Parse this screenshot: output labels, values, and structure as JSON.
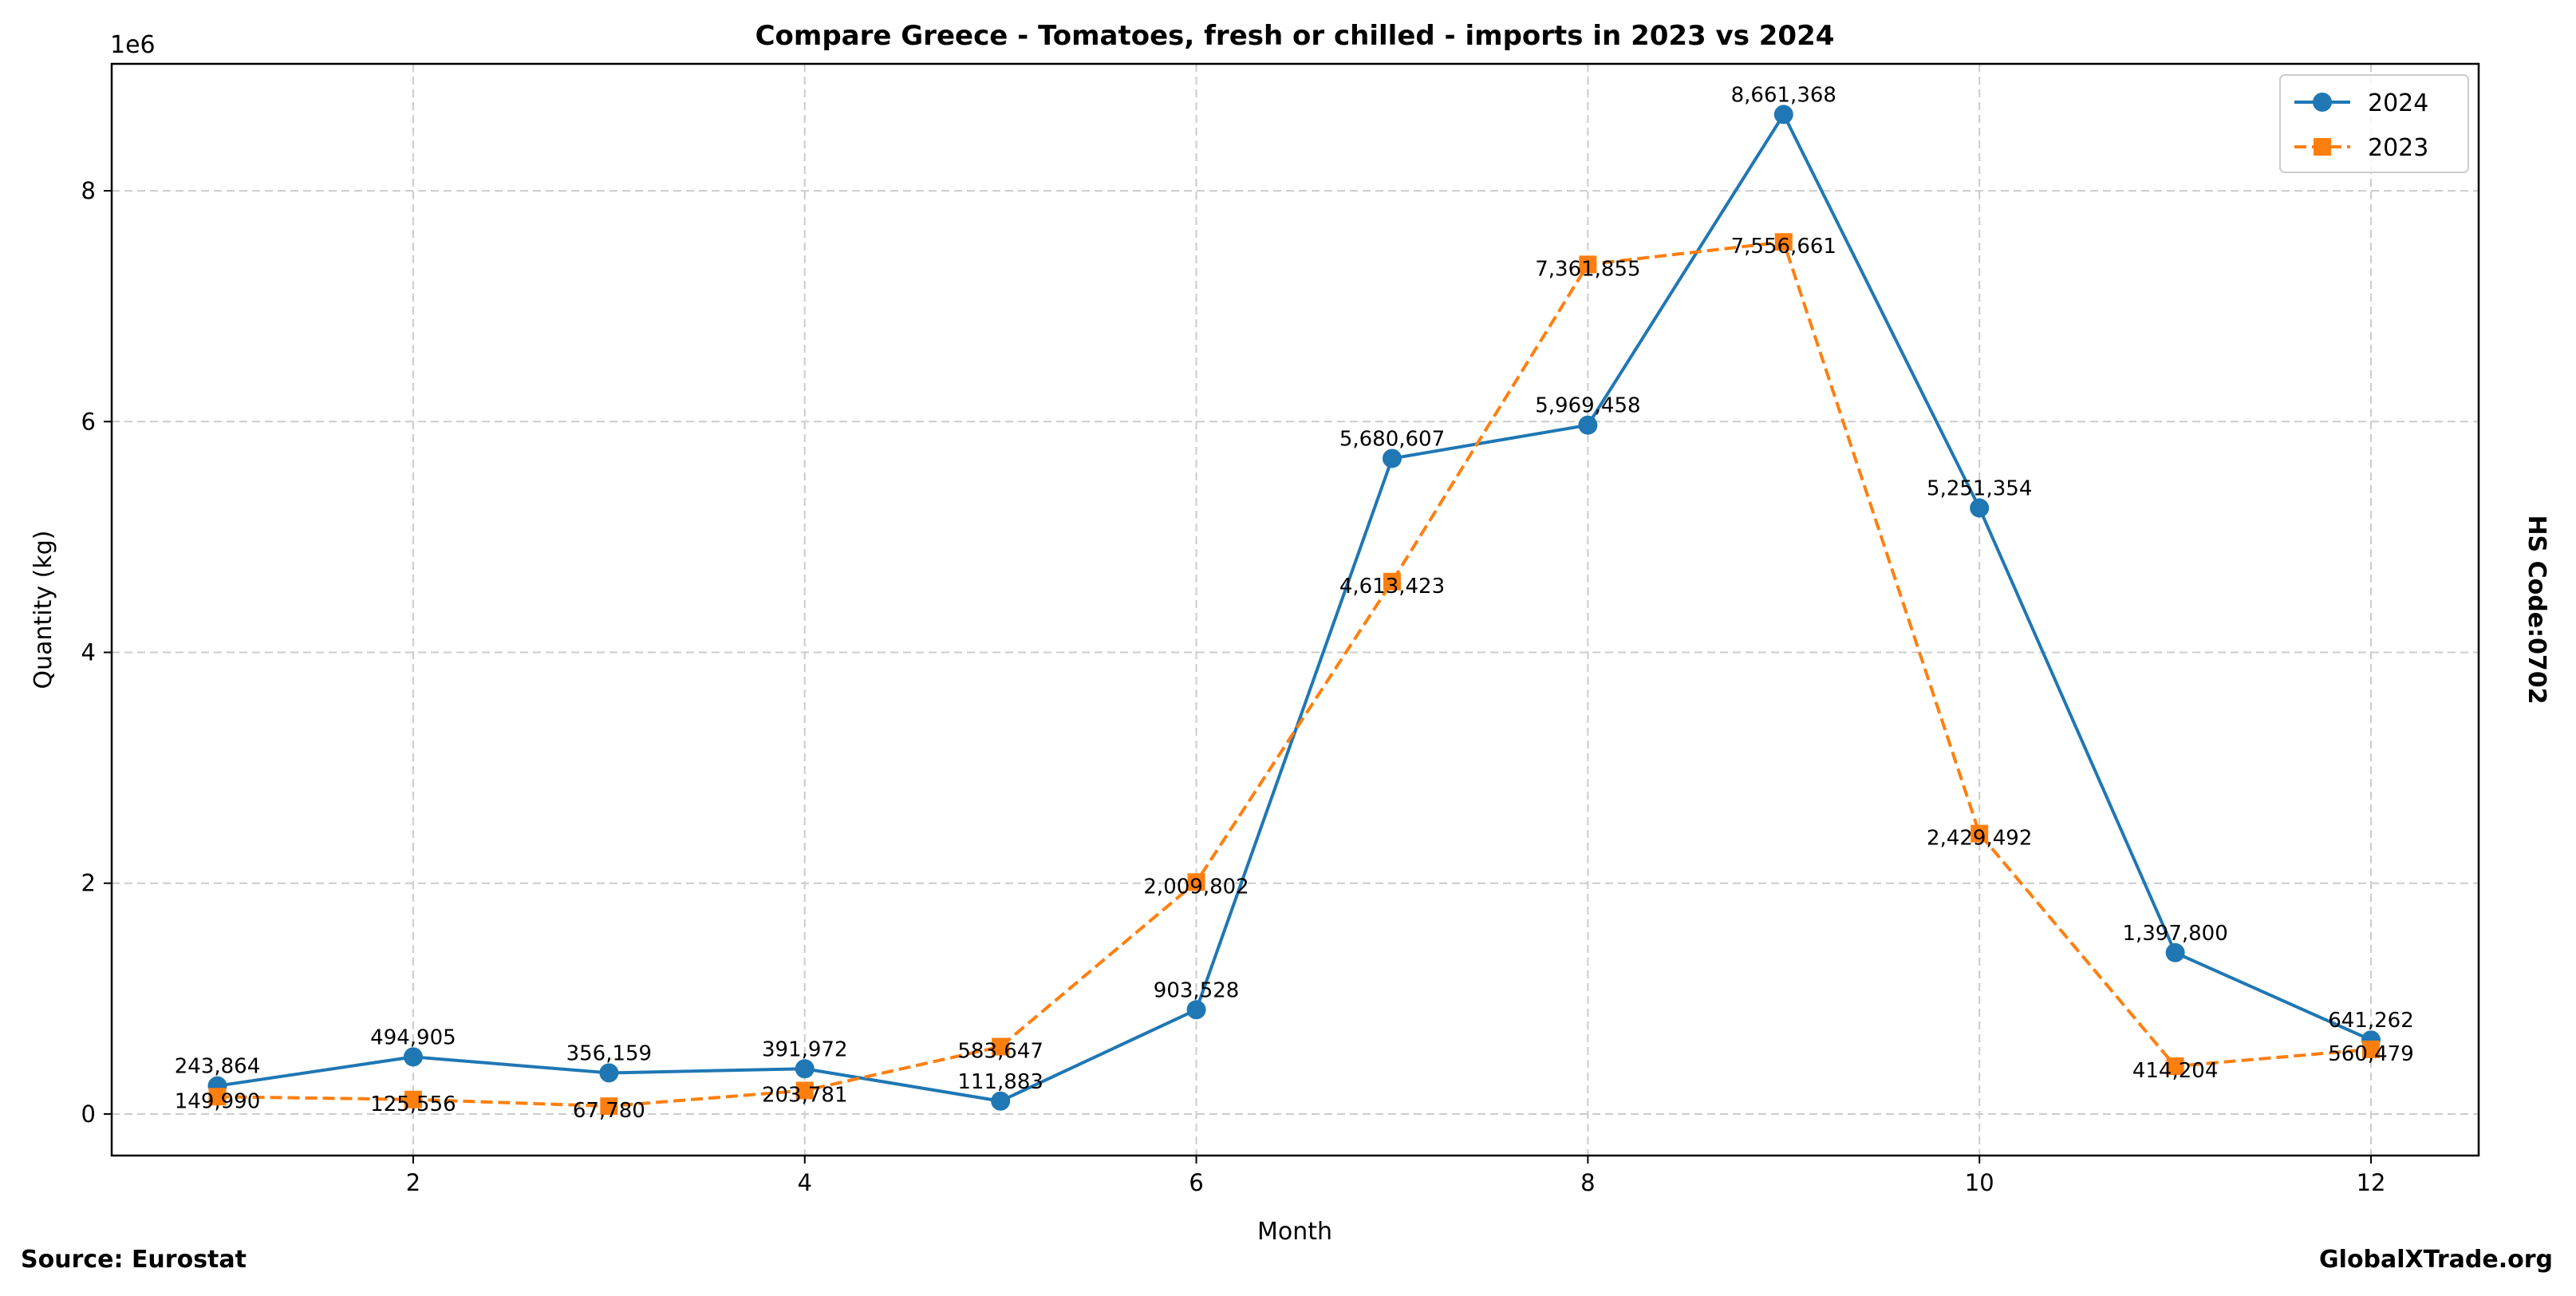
{
  "chart_data": {
    "type": "line",
    "title": "Compare Greece - Tomatoes, fresh or chilled - imports in 2023 vs 2024",
    "xlabel": "Month",
    "ylabel": "Quantity (kg)",
    "y_offset_label": "1e6",
    "x": [
      1,
      2,
      3,
      4,
      5,
      6,
      7,
      8,
      9,
      10,
      11,
      12
    ],
    "xlim": [
      0.46,
      12.55
    ],
    "ylim": [
      -360000,
      9100000
    ],
    "xticks": [
      2,
      4,
      6,
      8,
      10,
      12
    ],
    "yticks": [
      0,
      2000000,
      4000000,
      6000000,
      8000000
    ],
    "ytick_labels": [
      "0",
      "2",
      "4",
      "6",
      "8"
    ],
    "grid": true,
    "legend_position": "top-right",
    "series": [
      {
        "name": "2024",
        "color": "#1f77b4",
        "marker": "circle",
        "linestyle": "solid",
        "values": [
          243864,
          494905,
          356159,
          391972,
          111883,
          903528,
          5680607,
          5969458,
          8661368,
          5251354,
          1397800,
          641262
        ],
        "labels": [
          "243,864",
          "494,905",
          "356,159",
          "391,972",
          "111,883",
          "903,528",
          "5,680,607",
          "5,969,458",
          "8,661,368",
          "5,251,354",
          "1,397,800",
          "641,262"
        ]
      },
      {
        "name": "2023",
        "color": "#ff7f0e",
        "marker": "square",
        "linestyle": "dashed",
        "values": [
          149990,
          125556,
          67780,
          203781,
          583647,
          2009802,
          4613423,
          7361855,
          7556661,
          2429492,
          414204,
          560479
        ],
        "labels": [
          "149,990",
          "125,556",
          "67,780",
          "203,781",
          "583,647",
          "2,009,802",
          "4,613,423",
          "7,361,855",
          "7,556,661",
          "2,429,492",
          "414,204",
          "560,479"
        ]
      }
    ]
  },
  "annotations": {
    "side_label": "HS Code:0702",
    "source": "Source: Eurostat",
    "brand": "GlobalXTrade.org"
  }
}
